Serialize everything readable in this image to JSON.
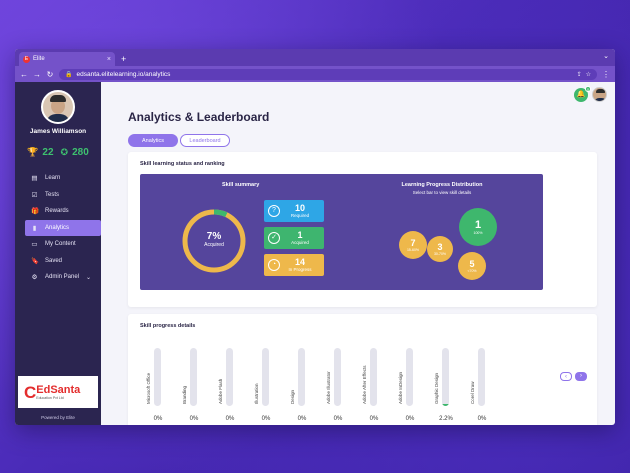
{
  "browser": {
    "tab_title": "Elite",
    "tab_favicon": "E",
    "url": "edsanta.elitelearning.io/analytics",
    "new_tab_glyph": "+",
    "close_glyph": "×"
  },
  "user": {
    "name": "James Williamson",
    "trophies": "22",
    "stars": "280"
  },
  "sidebar": {
    "items": [
      {
        "label": "Learn",
        "icon": "book-icon",
        "glyph": "▤"
      },
      {
        "label": "Tests",
        "icon": "checkbox-icon",
        "glyph": "☑"
      },
      {
        "label": "Rewards",
        "icon": "gift-icon",
        "glyph": "🎁"
      },
      {
        "label": "Analytics",
        "icon": "chart-icon",
        "glyph": "▮"
      },
      {
        "label": "My Content",
        "icon": "document-icon",
        "glyph": "▭"
      },
      {
        "label": "Saved",
        "icon": "bookmark-icon",
        "glyph": "🔖"
      },
      {
        "label": "Admin Panel",
        "icon": "gear-icon",
        "glyph": "⚙"
      }
    ],
    "active_index": 3,
    "brand_name": "EdSanta",
    "brand_sub": "Education Pvt Ltd",
    "powered_by": "Powered by Elite"
  },
  "header": {
    "notification_count": "0"
  },
  "page": {
    "title": "Analytics & Leaderboard",
    "tabs": [
      "Analytics",
      "Leaderboard"
    ]
  },
  "skill_card": {
    "title": "Skill learning status and ranking",
    "summary_title": "Skill summary",
    "acquired_pct": "7%",
    "acquired_label": "Acquired",
    "acquired_fraction": 0.07,
    "stats": [
      {
        "value": "10",
        "label": "Required",
        "icon": "question-icon",
        "glyph": "?"
      },
      {
        "value": "1",
        "label": "Acquired",
        "icon": "check-icon",
        "glyph": "✓"
      },
      {
        "value": "14",
        "label": "In Progress",
        "icon": "pie-icon",
        "glyph": "◔"
      }
    ],
    "dist_title": "Learning Progress Distribution",
    "dist_sub": "Select bar to view skill details",
    "bubbles": [
      {
        "value": "7",
        "label": "15-60%"
      },
      {
        "value": "3",
        "label": "30-70%"
      },
      {
        "value": "1",
        "label": "100%"
      },
      {
        "value": "5",
        "label": "<70%"
      }
    ]
  },
  "progress_card": {
    "title": "Skill progress details",
    "skills": [
      {
        "name": "Microsoft Office",
        "value": "0%",
        "fraction": 0
      },
      {
        "name": "Branding",
        "value": "0%",
        "fraction": 0
      },
      {
        "name": "Adobe Flash",
        "value": "0%",
        "fraction": 0
      },
      {
        "name": "Illustration",
        "value": "0%",
        "fraction": 0
      },
      {
        "name": "Design",
        "value": "0%",
        "fraction": 0
      },
      {
        "name": "Adobe Illustrator",
        "value": "0%",
        "fraction": 0
      },
      {
        "name": "Adobe After Effects",
        "value": "0%",
        "fraction": 0
      },
      {
        "name": "Adobe InDesign",
        "value": "0%",
        "fraction": 0
      },
      {
        "name": "Graphic Design",
        "value": "2.2%",
        "fraction": 0.022
      },
      {
        "name": "Corel Draw",
        "value": "0%",
        "fraction": 0
      }
    ],
    "prev_glyph": "‹",
    "next_glyph": "›"
  },
  "colors": {
    "accent": "#8f74ea",
    "sidebar": "#2b2550",
    "panel": "#55459c",
    "green": "#3eb76d",
    "blue": "#2ea6e6",
    "yellow": "#eeb84b"
  }
}
